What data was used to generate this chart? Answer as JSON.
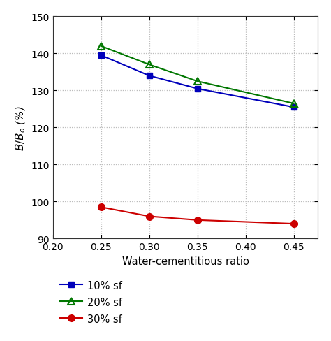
{
  "x": [
    0.25,
    0.3,
    0.35,
    0.45
  ],
  "series_10sf": [
    139.5,
    134.0,
    130.5,
    125.5
  ],
  "series_20sf": [
    142.0,
    137.0,
    132.5,
    126.5
  ],
  "series_30sf": [
    98.5,
    96.0,
    95.0,
    94.0
  ],
  "color_10sf": "#0000bb",
  "color_20sf": "#007700",
  "color_30sf": "#cc0000",
  "xlabel": "Water-cementitious ratio",
  "ylabel": "$B/B_o$ (%)",
  "xlim": [
    0.2,
    0.475
  ],
  "ylim": [
    90,
    150
  ],
  "xticks": [
    0.2,
    0.25,
    0.3,
    0.35,
    0.4,
    0.45
  ],
  "yticks": [
    90,
    100,
    110,
    120,
    130,
    140,
    150
  ],
  "legend_labels": [
    "10% sf",
    "20% sf",
    "30% sf"
  ],
  "grid_color": "#bbbbbb",
  "bg_color": "#ffffff"
}
